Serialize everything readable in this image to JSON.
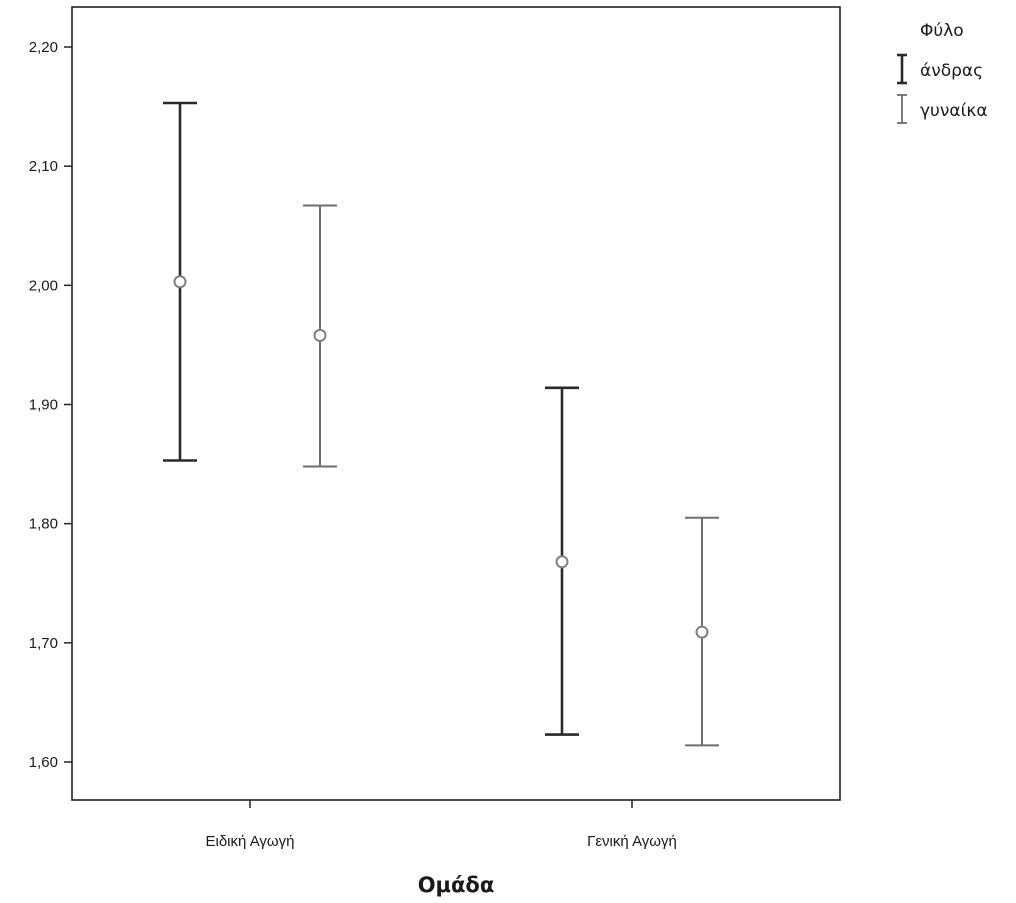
{
  "chart_data": {
    "type": "errorbar",
    "categories": [
      "Ειδική Αγωγή",
      "Γενική Αγωγή"
    ],
    "xlabel": "Ομάδα",
    "ylabel": "",
    "ylim": [
      1.58,
      2.235
    ],
    "yticks": [
      1.6,
      1.7,
      1.8,
      1.9,
      2.0,
      2.1,
      2.2
    ],
    "ytick_labels": [
      "1,60",
      "1,70",
      "1,80",
      "1,90",
      "2,00",
      "2,10",
      "2,20"
    ],
    "grid": false,
    "legend": {
      "title": "Φύλο",
      "position": "right-top"
    },
    "series": [
      {
        "name": "άνδρας",
        "color": "#2a2a2a",
        "mean": [
          2.003,
          1.768
        ],
        "lower": [
          1.853,
          1.623
        ],
        "upper": [
          2.153,
          1.914
        ]
      },
      {
        "name": "γυναίκα",
        "color": "#6e6e6e",
        "mean": [
          1.958,
          1.709
        ],
        "lower": [
          1.848,
          1.614
        ],
        "upper": [
          2.067,
          1.805
        ]
      }
    ]
  }
}
